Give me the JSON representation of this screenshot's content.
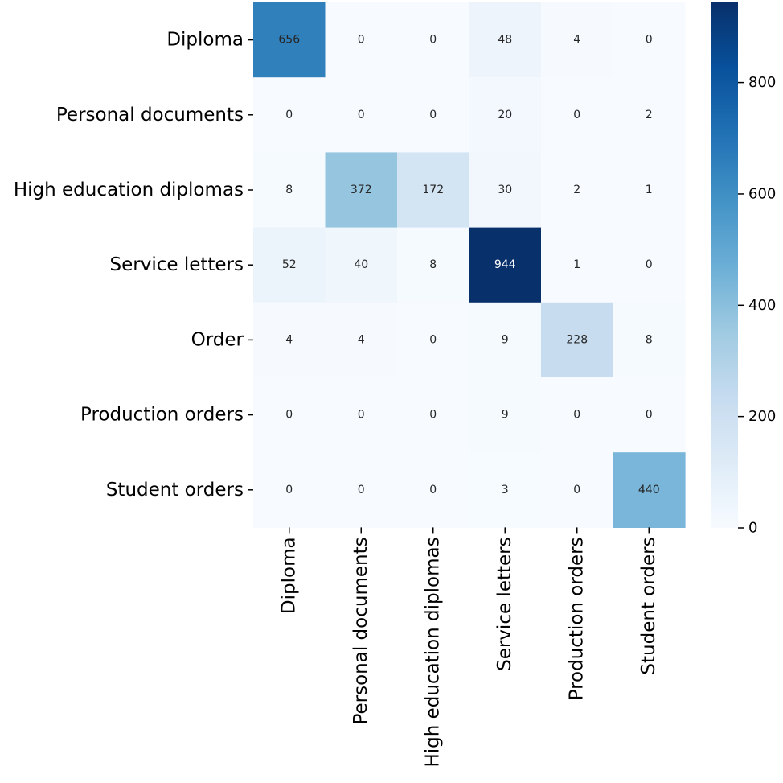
{
  "chart_data": {
    "type": "heatmap",
    "title": "",
    "xlabel": "",
    "ylabel": "",
    "row_labels": [
      "Diploma",
      "Personal documents",
      "High education diplomas",
      "Service letters",
      "Order",
      "Production orders",
      "Student orders"
    ],
    "col_labels": [
      "Diploma",
      "Personal documents",
      "High education diplomas",
      "Service letters",
      "Production orders",
      "Student orders"
    ],
    "values": [
      [
        656,
        0,
        0,
        48,
        4,
        0
      ],
      [
        0,
        0,
        0,
        20,
        0,
        2
      ],
      [
        8,
        372,
        172,
        30,
        2,
        1
      ],
      [
        52,
        40,
        8,
        944,
        1,
        0
      ],
      [
        4,
        4,
        0,
        9,
        228,
        8
      ],
      [
        0,
        0,
        0,
        9,
        0,
        0
      ],
      [
        0,
        0,
        0,
        3,
        0,
        440
      ]
    ],
    "colormap": "Blues",
    "colorbar": {
      "range": [
        0,
        944
      ],
      "ticks": [
        0,
        200,
        400,
        600,
        800
      ],
      "tick_labels": [
        "0",
        "200",
        "400",
        "600",
        "800"
      ]
    }
  }
}
